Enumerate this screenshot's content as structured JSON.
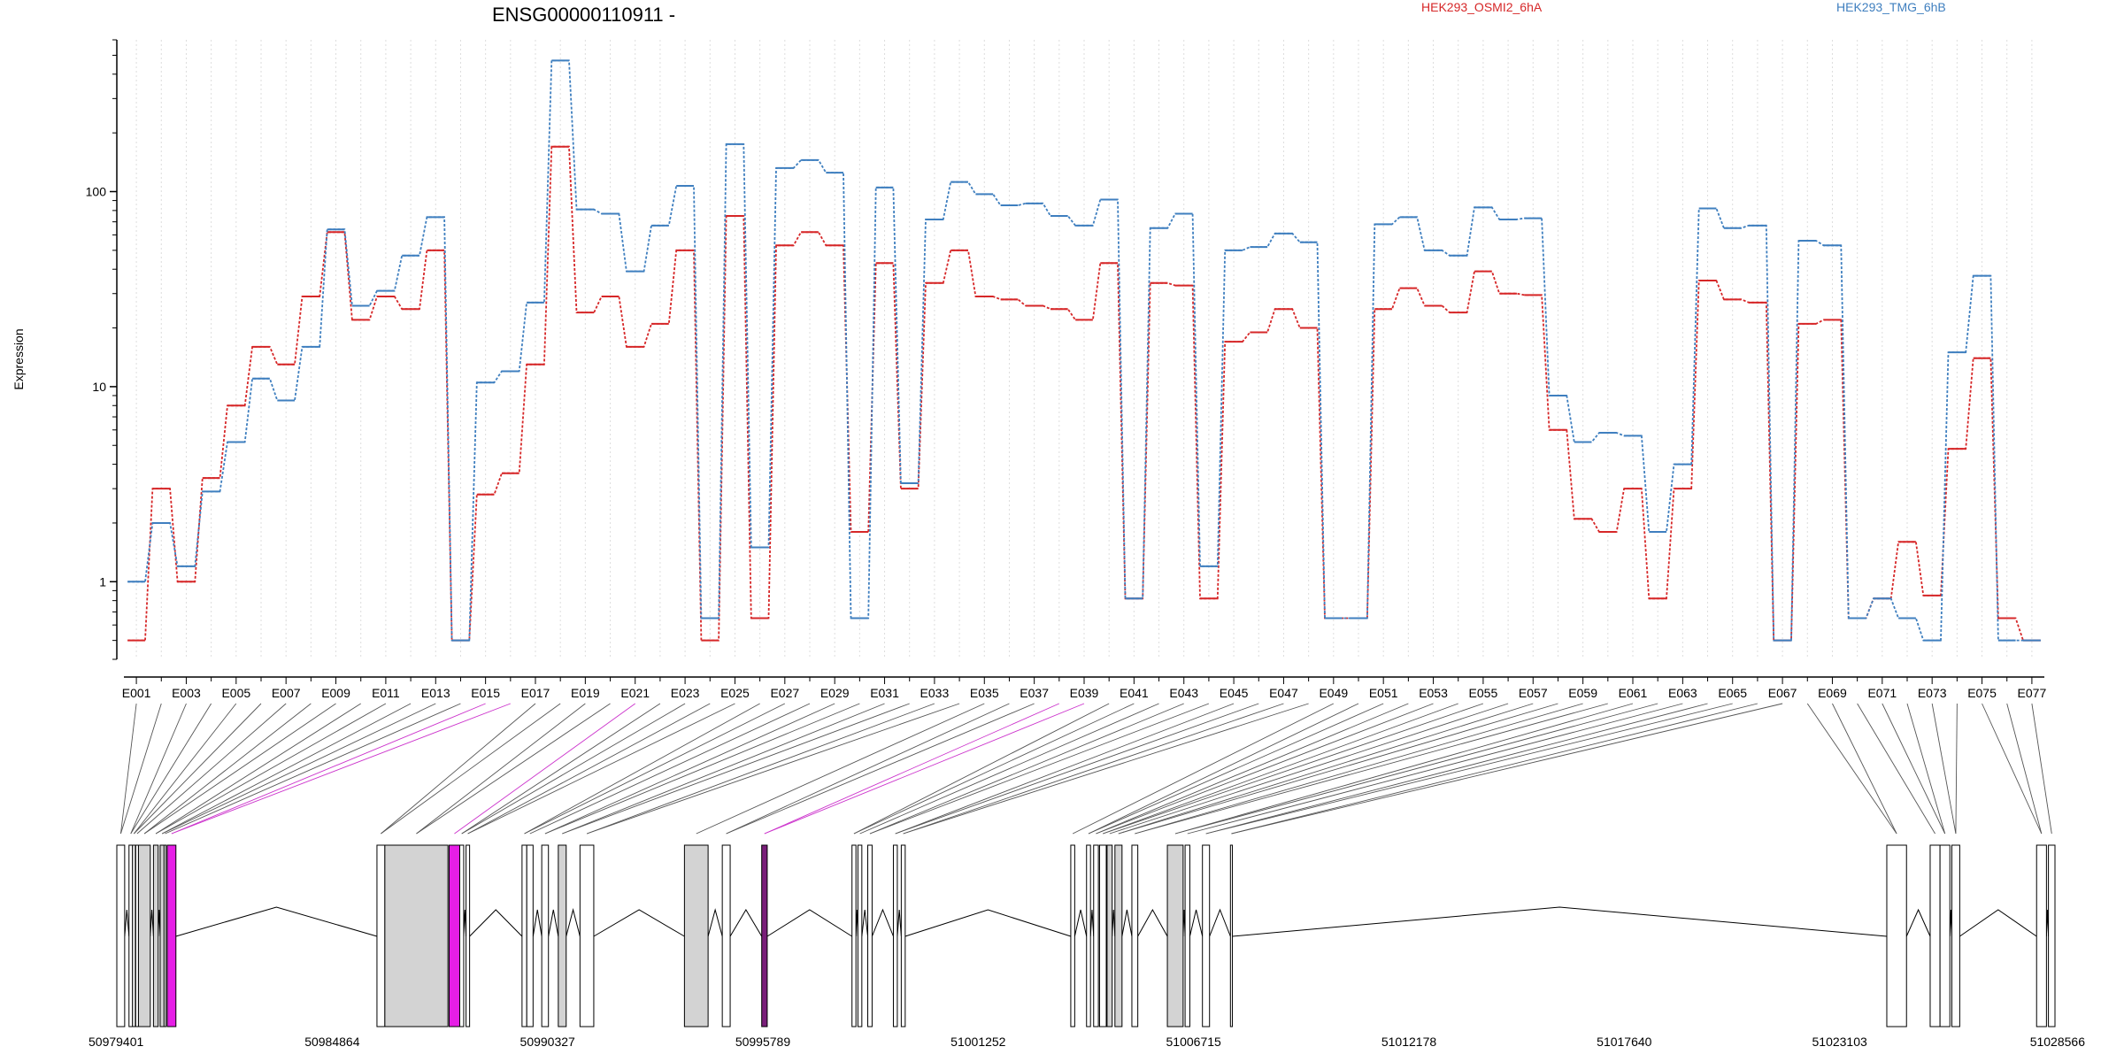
{
  "chart_data": {
    "type": "line",
    "title": "ENSG00000110911 -",
    "ylabel": "Expression",
    "xlabel": "",
    "yscale": "log",
    "ylim": [
      0.4,
      600
    ],
    "ytick_values": [
      1,
      10,
      100
    ],
    "ytick_labels": [
      "1",
      "10",
      "100"
    ],
    "grid": "vertical dotted at each exon",
    "legend_position": "top",
    "series": [
      {
        "name": "HEK293_OSMI2_6hA",
        "color": "#d62728",
        "values": [
          0.5,
          3,
          1,
          3.4,
          8,
          16,
          13,
          29,
          62,
          22,
          29,
          25,
          50,
          0.5,
          2.8,
          3.6,
          13,
          170,
          24,
          29,
          16,
          21,
          50,
          0.5,
          75,
          0.65,
          53,
          62,
          53,
          1.8,
          43,
          3,
          34,
          50,
          29,
          28,
          26,
          25,
          22,
          43,
          0.82,
          34,
          33,
          0.82,
          17,
          19,
          25,
          20,
          0.65,
          0.65,
          25,
          32,
          26,
          24,
          39,
          30,
          29.5,
          6,
          2.1,
          1.8,
          3,
          0.82,
          3,
          35,
          28,
          27,
          0.5,
          21,
          22,
          0.65,
          0.82,
          1.6,
          0.85,
          4.8,
          14,
          0.65,
          0.5
        ]
      },
      {
        "name": "HEK293_TMG_6hB",
        "color": "#3f7fbf",
        "values": [
          1,
          2,
          1.2,
          2.9,
          5.2,
          11,
          8.5,
          16,
          64,
          26,
          31,
          47,
          74,
          0.5,
          10.5,
          12,
          27,
          470,
          81,
          77,
          39,
          67,
          107,
          0.65,
          175,
          1.5,
          132,
          145,
          125,
          0.65,
          105,
          3.2,
          72,
          112,
          97,
          85,
          87,
          75,
          67,
          91,
          0.82,
          65,
          77,
          1.2,
          50,
          52,
          61,
          55,
          0.65,
          0.65,
          68,
          74,
          50,
          47,
          83,
          72,
          73,
          9,
          5.2,
          5.8,
          5.6,
          1.8,
          4,
          82,
          65,
          67,
          0.5,
          56,
          53,
          0.65,
          0.82,
          0.65,
          0.5,
          15,
          37,
          0.5,
          0.5
        ]
      }
    ],
    "exon_labels": [
      "E001",
      "E003",
      "E005",
      "E007",
      "E009",
      "E011",
      "E013",
      "E015",
      "E017",
      "E019",
      "E021",
      "E023",
      "E025",
      "E027",
      "E029",
      "E031",
      "E033",
      "E035",
      "E037",
      "E039",
      "E041",
      "E043",
      "E045",
      "E047",
      "E049",
      "E051",
      "E053",
      "E055",
      "E057",
      "E059",
      "E061",
      "E063",
      "E065",
      "E067",
      "E069",
      "E071",
      "E073",
      "E075",
      "E077"
    ],
    "gene_coordinates": [
      "50979401",
      "50984864",
      "50990327",
      "50995789",
      "51001252",
      "51006715",
      "51012178",
      "51017640",
      "51023103",
      "51028566"
    ],
    "genomic_range": [
      50979401,
      51028566
    ],
    "highlight_color": "#e61ee6",
    "exon_fill_color": "#d3d3d3",
    "transcript_exons": [
      [
        50979401,
        50979600,
        "white"
      ],
      [
        50979710,
        50979800,
        "white"
      ],
      [
        50979800,
        50979870,
        "white"
      ],
      [
        50979880,
        50979950,
        "white"
      ],
      [
        50979950,
        50980250,
        "grey"
      ],
      [
        50980330,
        50980450,
        "grey"
      ],
      [
        50980500,
        50980600,
        "grey"
      ],
      [
        50980600,
        50980650,
        "white"
      ],
      [
        50980680,
        50980900,
        "pink"
      ],
      [
        50986000,
        50986200,
        "white"
      ],
      [
        50986200,
        50987800,
        "grey"
      ],
      [
        50987830,
        50988100,
        "pink"
      ],
      [
        50988100,
        50988200,
        "white"
      ],
      [
        50988260,
        50988350,
        "white"
      ],
      [
        50989680,
        50989800,
        "white"
      ],
      [
        50989800,
        50989960,
        "white"
      ],
      [
        50990180,
        50990350,
        "white"
      ],
      [
        50990600,
        50990800,
        "grey"
      ],
      [
        50991150,
        50991500,
        "white"
      ],
      [
        50993800,
        50994400,
        "grey"
      ],
      [
        50994760,
        50994960,
        "white"
      ],
      [
        50995760,
        50995900,
        "purple"
      ],
      [
        50998050,
        50998150,
        "white"
      ],
      [
        50998200,
        50998300,
        "white"
      ],
      [
        50998450,
        50998560,
        "white"
      ],
      [
        50999100,
        50999200,
        "white"
      ],
      [
        50999300,
        50999400,
        "white"
      ],
      [
        51003600,
        51003700,
        "white"
      ],
      [
        51004000,
        51004100,
        "white"
      ],
      [
        51004180,
        51004300,
        "white"
      ],
      [
        51004330,
        51004500,
        "white"
      ],
      [
        51004520,
        51004650,
        "grey"
      ],
      [
        51004720,
        51004900,
        "grey"
      ],
      [
        51005150,
        51005300,
        "white"
      ],
      [
        51006050,
        51006450,
        "grey"
      ],
      [
        51006500,
        51006620,
        "white"
      ],
      [
        51006940,
        51007120,
        "white"
      ],
      [
        51007650,
        51007700,
        "white"
      ],
      [
        51024300,
        51024800,
        "white"
      ],
      [
        51025400,
        51025650,
        "white"
      ],
      [
        51025650,
        51025900,
        "white"
      ],
      [
        51025950,
        51026150,
        "white"
      ],
      [
        51028100,
        51028350,
        "white"
      ],
      [
        51028400,
        51028566,
        "white"
      ]
    ]
  }
}
